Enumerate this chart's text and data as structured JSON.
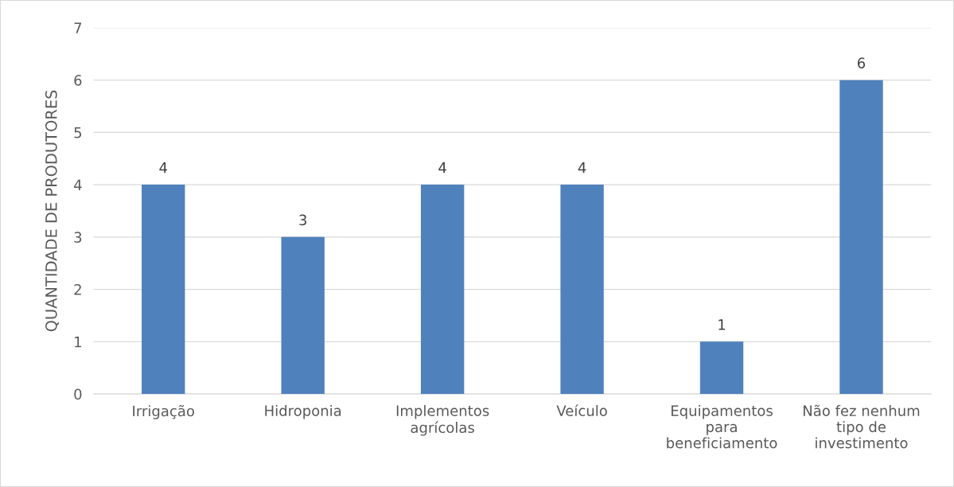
{
  "chart_data": {
    "type": "bar",
    "ylabel": "QUANTIDADE DE PRODUTORES",
    "categories": [
      "Irrigação",
      "Hidroponia",
      "Implementos\nagrícolas",
      "Veículo",
      "Equipamentos\npara\nbeneficiamento",
      "Não fez nenhum\ntipo de\ninvestimento"
    ],
    "values": [
      4,
      3,
      4,
      4,
      1,
      6
    ],
    "color": "#4f81bd",
    "ylim": [
      0,
      7
    ],
    "yticks": [
      0,
      1,
      2,
      3,
      4,
      5,
      6,
      7
    ],
    "grid": "y",
    "data_labels": true
  }
}
